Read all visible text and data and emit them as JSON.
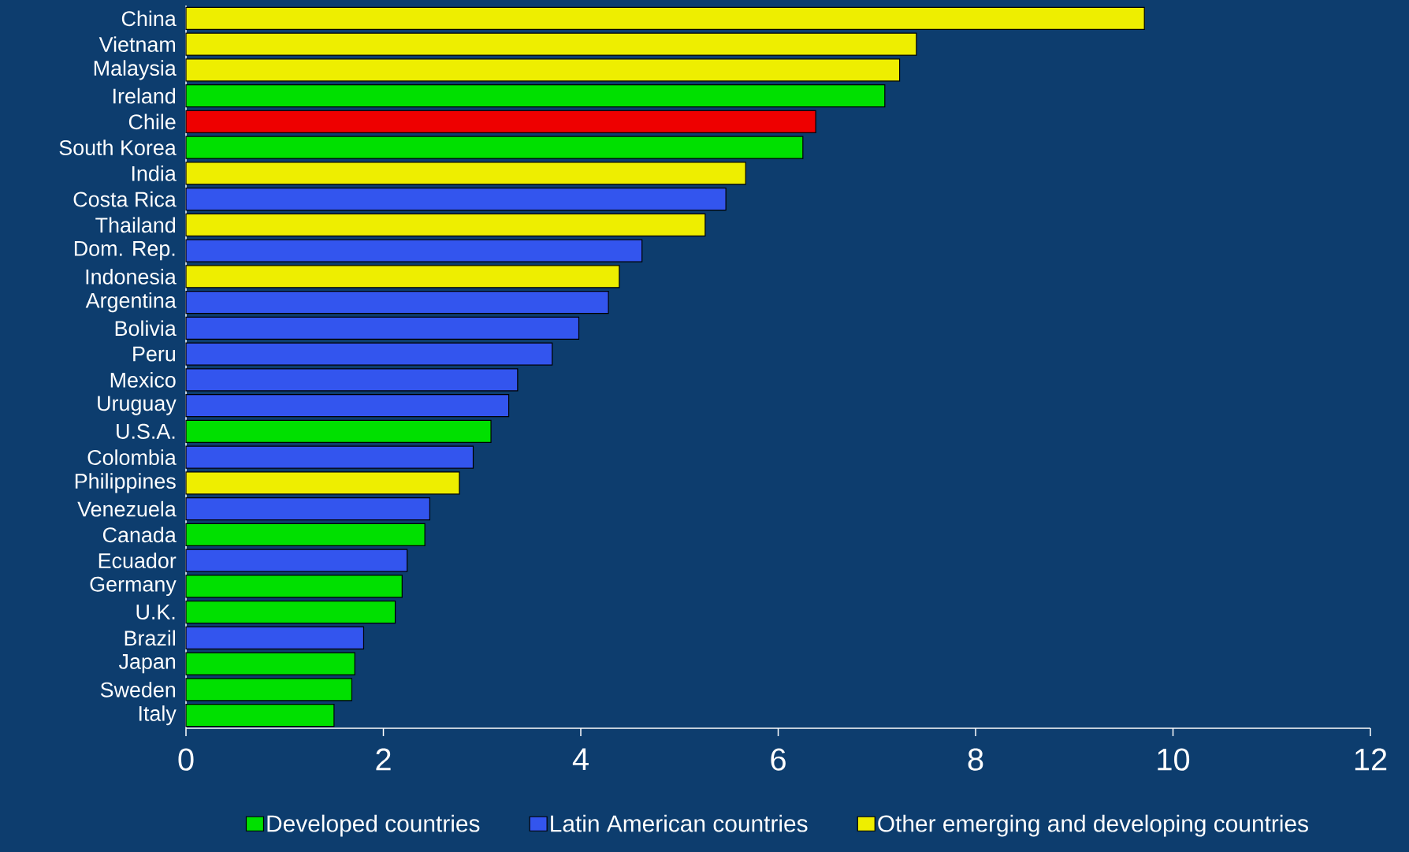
{
  "chart_data": {
    "type": "bar",
    "orientation": "horizontal",
    "stacked": true,
    "legend": "bottom",
    "categories": [
      "China",
      "Vietnam",
      "Malaysia",
      "Ireland",
      "Chile",
      "South Korea",
      "India",
      "Costa Rica",
      "Thailand",
      "Dom. Rep.",
      "Indonesia",
      "Argentina",
      "Bolivia",
      "Peru",
      "Mexico",
      "Uruguay",
      "U.S.A.",
      "Colombia",
      "Philippines",
      "Venezuela",
      "Canada",
      "Ecuador",
      "Germany",
      "U.K.",
      "Brazil",
      "Japan",
      "Sweden",
      "Italy"
    ],
    "series": [
      {
        "name": "Developed countries",
        "color": "#00e000",
        "values": [
          null,
          null,
          null,
          7.08,
          null,
          6.25,
          null,
          null,
          null,
          null,
          null,
          null,
          null,
          null,
          null,
          null,
          3.09,
          null,
          null,
          null,
          2.42,
          null,
          2.19,
          2.12,
          null,
          1.71,
          1.68,
          1.5
        ]
      },
      {
        "name": "Latin American countries",
        "color": "#3355ee",
        "values": [
          null,
          null,
          null,
          null,
          null,
          null,
          null,
          5.47,
          null,
          4.62,
          null,
          4.28,
          3.98,
          3.71,
          3.36,
          3.27,
          null,
          2.91,
          null,
          2.47,
          null,
          2.24,
          null,
          null,
          1.8,
          null,
          null,
          null
        ]
      },
      {
        "name": "Other emerging and developing countries",
        "color": "#eeee00",
        "values": [
          9.71,
          7.4,
          7.23,
          null,
          null,
          null,
          5.67,
          null,
          5.26,
          null,
          4.39,
          null,
          null,
          null,
          null,
          null,
          null,
          null,
          2.77,
          null,
          null,
          null,
          null,
          null,
          null,
          null,
          null,
          null
        ]
      },
      {
        "color": "#ee0000",
        "values": [
          null,
          null,
          null,
          null,
          6.38,
          null,
          null,
          null,
          null,
          null,
          null,
          null,
          null,
          null,
          null,
          null,
          null,
          null,
          null,
          null,
          null,
          null,
          null,
          null,
          null,
          null,
          null,
          null
        ]
      }
    ],
    "xlim": [
      0,
      12
    ],
    "xticks": [
      0,
      2,
      4,
      6,
      8,
      10,
      12
    ]
  }
}
